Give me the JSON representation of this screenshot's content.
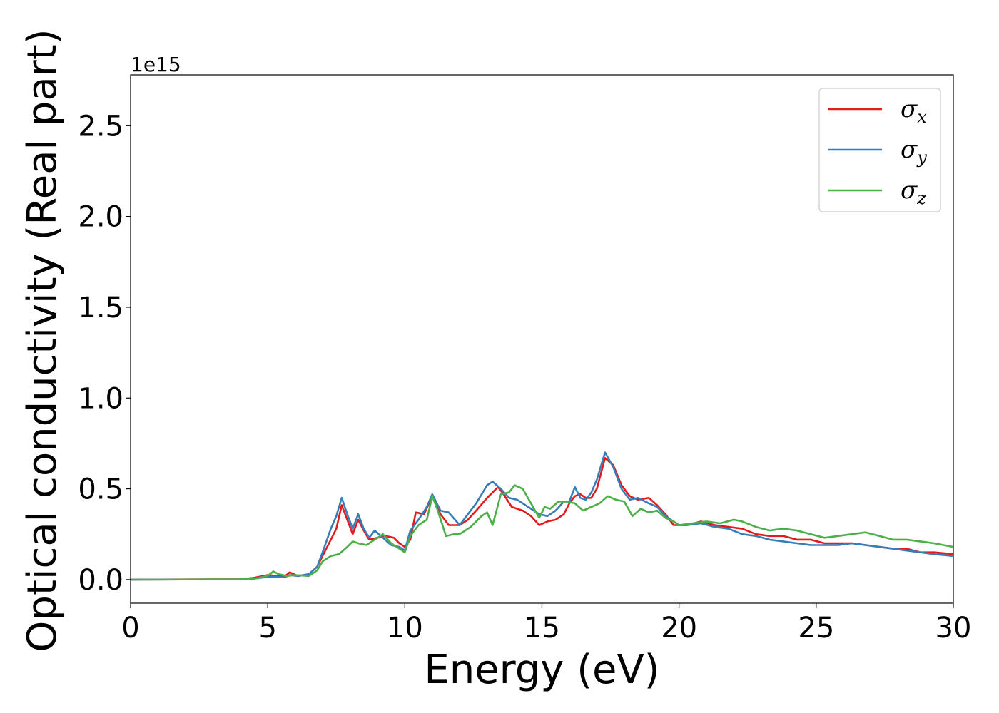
{
  "chart_data": {
    "type": "line",
    "xlabel": "Energy (eV)",
    "ylabel": "Optical conductivity (Real part)",
    "y_offset_label": "1e15",
    "xlim": [
      0,
      30
    ],
    "ylim": [
      -0.13,
      2.78
    ],
    "xticks": [
      0,
      5,
      10,
      15,
      20,
      25,
      30
    ],
    "xtick_labels": [
      "0",
      "5",
      "10",
      "15",
      "20",
      "25",
      "30"
    ],
    "yticks": [
      0.0,
      0.5,
      1.0,
      1.5,
      2.0,
      2.5
    ],
    "ytick_labels": [
      "0.0",
      "0.5",
      "1.0",
      "1.5",
      "2.0",
      "2.5"
    ],
    "grid": false,
    "legend_position": "top-right",
    "series": [
      {
        "name": "σx",
        "legend": {
          "symbol": "σ",
          "sub": "x"
        },
        "color": "#e41a1c",
        "x": [
          0,
          4,
          4.5,
          5,
          5.4,
          5.6,
          5.8,
          6.1,
          6.5,
          6.8,
          7.0,
          7.3,
          7.5,
          7.7,
          7.9,
          8.1,
          8.3,
          8.5,
          8.7,
          9.0,
          9.3,
          9.6,
          9.8,
          10.0,
          10.2,
          10.4,
          10.7,
          11.0,
          11.3,
          11.6,
          12.0,
          12.3,
          12.6,
          13.0,
          13.4,
          13.6,
          13.9,
          14.3,
          14.6,
          14.9,
          15.2,
          15.5,
          15.8,
          16.0,
          16.2,
          16.4,
          16.6,
          16.8,
          17.0,
          17.3,
          17.6,
          17.9,
          18.2,
          18.5,
          18.9,
          19.2,
          19.5,
          19.8,
          20.0,
          20.3,
          20.8,
          21.3,
          21.8,
          22.3,
          22.8,
          23.3,
          23.8,
          24.3,
          24.8,
          25.3,
          25.8,
          26.3,
          26.8,
          27.3,
          27.8,
          28.3,
          28.8,
          29.3,
          30.0
        ],
        "y": [
          0,
          0.002,
          0.01,
          0.025,
          0.02,
          0.015,
          0.04,
          0.02,
          0.03,
          0.07,
          0.13,
          0.22,
          0.28,
          0.41,
          0.33,
          0.25,
          0.33,
          0.27,
          0.22,
          0.23,
          0.24,
          0.23,
          0.2,
          0.18,
          0.22,
          0.37,
          0.36,
          0.46,
          0.36,
          0.3,
          0.3,
          0.33,
          0.38,
          0.45,
          0.51,
          0.47,
          0.4,
          0.38,
          0.35,
          0.3,
          0.32,
          0.33,
          0.36,
          0.42,
          0.46,
          0.47,
          0.45,
          0.45,
          0.5,
          0.67,
          0.63,
          0.52,
          0.46,
          0.44,
          0.45,
          0.41,
          0.36,
          0.3,
          0.3,
          0.3,
          0.32,
          0.3,
          0.29,
          0.28,
          0.25,
          0.24,
          0.24,
          0.22,
          0.22,
          0.2,
          0.2,
          0.2,
          0.19,
          0.18,
          0.17,
          0.17,
          0.15,
          0.15,
          0.14
        ]
      },
      {
        "name": "σy",
        "legend": {
          "symbol": "σ",
          "sub": "y"
        },
        "color": "#377eb8",
        "x": [
          0,
          4,
          4.5,
          5,
          5.4,
          5.6,
          5.8,
          6.1,
          6.5,
          6.8,
          7.0,
          7.3,
          7.5,
          7.7,
          7.9,
          8.1,
          8.3,
          8.5,
          8.7,
          8.9,
          9.2,
          9.5,
          9.8,
          10.0,
          10.2,
          10.5,
          10.8,
          11.0,
          11.3,
          11.6,
          12.0,
          12.3,
          12.6,
          13.0,
          13.2,
          13.5,
          13.8,
          14.1,
          14.5,
          14.9,
          15.2,
          15.5,
          15.8,
          16.0,
          16.2,
          16.4,
          16.6,
          16.8,
          17.0,
          17.3,
          17.6,
          17.9,
          18.2,
          18.5,
          18.9,
          19.2,
          19.5,
          19.8,
          20.0,
          20.3,
          20.8,
          21.3,
          21.8,
          22.3,
          22.8,
          23.3,
          23.8,
          24.3,
          24.8,
          25.3,
          25.8,
          26.3,
          26.8,
          27.3,
          27.8,
          28.3,
          28.8,
          29.3,
          30.0
        ],
        "y": [
          0,
          0.001,
          0.005,
          0.015,
          0.015,
          0.012,
          0.025,
          0.02,
          0.03,
          0.07,
          0.15,
          0.28,
          0.35,
          0.45,
          0.36,
          0.28,
          0.36,
          0.28,
          0.23,
          0.27,
          0.23,
          0.19,
          0.18,
          0.16,
          0.27,
          0.33,
          0.4,
          0.47,
          0.38,
          0.37,
          0.3,
          0.36,
          0.42,
          0.52,
          0.54,
          0.5,
          0.45,
          0.44,
          0.4,
          0.36,
          0.35,
          0.38,
          0.43,
          0.43,
          0.51,
          0.45,
          0.44,
          0.48,
          0.55,
          0.7,
          0.62,
          0.5,
          0.44,
          0.45,
          0.42,
          0.4,
          0.35,
          0.32,
          0.3,
          0.3,
          0.31,
          0.29,
          0.28,
          0.25,
          0.24,
          0.22,
          0.21,
          0.2,
          0.19,
          0.19,
          0.19,
          0.2,
          0.19,
          0.18,
          0.17,
          0.16,
          0.15,
          0.14,
          0.13
        ]
      },
      {
        "name": "σz",
        "legend": {
          "symbol": "σ",
          "sub": "z"
        },
        "color": "#4daf4a",
        "x": [
          0,
          4,
          4.5,
          5,
          5.2,
          5.4,
          5.7,
          6.0,
          6.5,
          6.8,
          7.0,
          7.3,
          7.6,
          7.9,
          8.1,
          8.3,
          8.6,
          8.9,
          9.2,
          9.5,
          9.8,
          10.0,
          10.2,
          10.5,
          10.8,
          11.0,
          11.2,
          11.5,
          11.8,
          12.0,
          12.4,
          12.8,
          13.0,
          13.2,
          13.5,
          13.8,
          14.0,
          14.3,
          14.6,
          14.9,
          15.1,
          15.3,
          15.6,
          15.9,
          16.2,
          16.5,
          16.8,
          17.1,
          17.4,
          17.7,
          18.0,
          18.3,
          18.6,
          18.9,
          19.2,
          19.5,
          19.8,
          20.0,
          20.5,
          21.0,
          21.5,
          22.0,
          22.3,
          22.8,
          23.3,
          23.8,
          24.3,
          24.8,
          25.3,
          25.8,
          26.3,
          26.8,
          27.3,
          27.8,
          28.3,
          28.8,
          29.3,
          30.0
        ],
        "y": [
          0,
          0.001,
          0.005,
          0.02,
          0.045,
          0.03,
          0.02,
          0.025,
          0.02,
          0.05,
          0.1,
          0.13,
          0.14,
          0.18,
          0.21,
          0.2,
          0.19,
          0.22,
          0.25,
          0.2,
          0.17,
          0.15,
          0.24,
          0.3,
          0.33,
          0.46,
          0.38,
          0.24,
          0.25,
          0.25,
          0.29,
          0.35,
          0.37,
          0.3,
          0.47,
          0.48,
          0.52,
          0.5,
          0.42,
          0.34,
          0.4,
          0.39,
          0.43,
          0.43,
          0.42,
          0.38,
          0.4,
          0.42,
          0.46,
          0.44,
          0.43,
          0.35,
          0.39,
          0.37,
          0.38,
          0.34,
          0.32,
          0.3,
          0.31,
          0.32,
          0.31,
          0.33,
          0.32,
          0.29,
          0.27,
          0.28,
          0.27,
          0.25,
          0.23,
          0.24,
          0.25,
          0.26,
          0.24,
          0.22,
          0.22,
          0.21,
          0.2,
          0.18
        ]
      }
    ]
  }
}
